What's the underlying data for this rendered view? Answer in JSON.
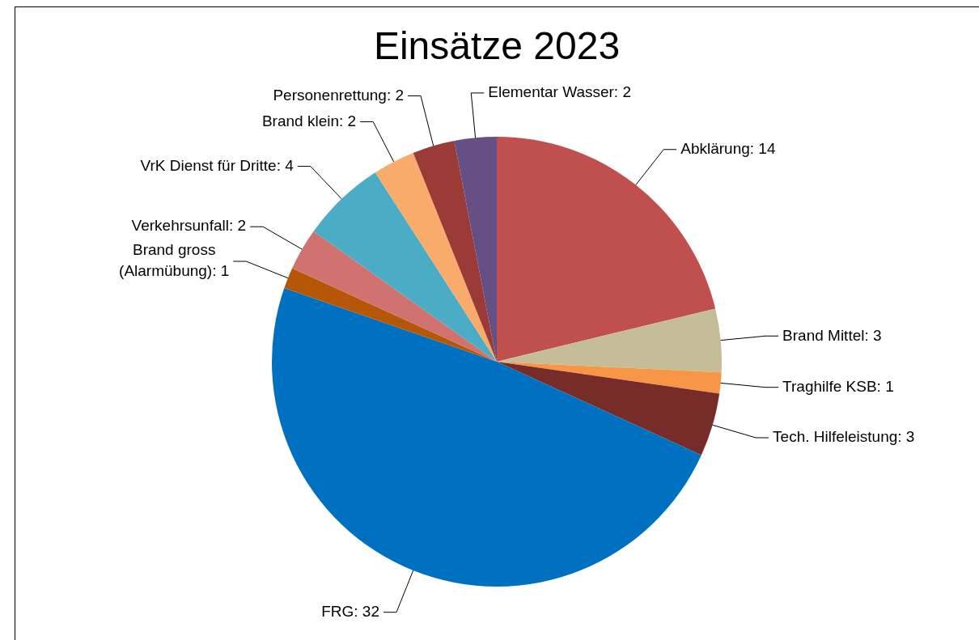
{
  "chart_data": {
    "type": "pie",
    "title": "Einsätze 2023",
    "categories": [
      "Abklärung: 14",
      "Brand Mittel: 3",
      "Traghilfe KSB: 1",
      "Tech. Hilfeleistung: 3",
      "FRG: 32",
      "Brand gross (Alarmübung): 1",
      "Verkehrsunfall: 2",
      "VrK Dienst für Dritte: 4",
      "Brand klein: 2",
      "Personenrettung: 2",
      "Elementar Wasser: 2"
    ],
    "values": [
      14,
      3,
      1,
      3,
      32,
      1,
      2,
      4,
      2,
      2,
      2
    ],
    "colors": [
      "#c0504d",
      "#c4bd97",
      "#f79646",
      "#772c2a",
      "#0070c0",
      "#b65708",
      "#d07370",
      "#4bacc6",
      "#f9ab6b",
      "#9c3a38",
      "#654f84"
    ],
    "legend": false
  }
}
